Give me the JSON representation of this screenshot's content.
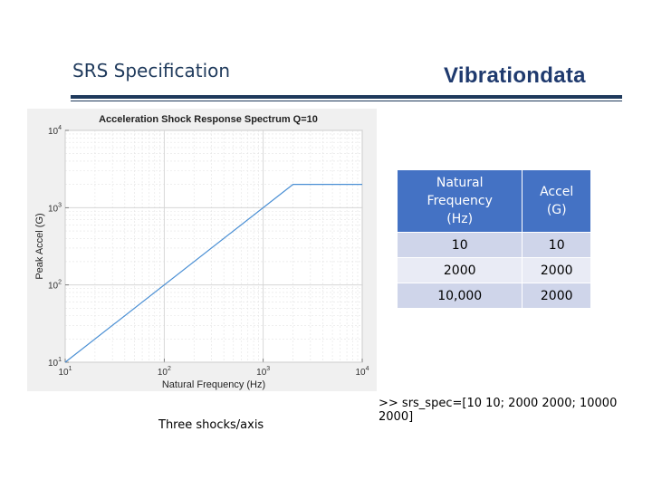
{
  "slide": {
    "title": "SRS Specification",
    "brand": "Vibrationdata"
  },
  "table": {
    "headers": [
      "Natural\nFrequency\n(Hz)",
      "Accel\n(G)"
    ],
    "rows": [
      [
        "10",
        "10"
      ],
      [
        "2000",
        "2000"
      ],
      [
        "10,000",
        "2000"
      ]
    ]
  },
  "command": ">> srs_spec=[10 10; 2000 2000; 10000 2000]",
  "caption": "Three shocks/axis",
  "chart_data": {
    "type": "line",
    "title": "Acceleration Shock Response Spectrum Q=10",
    "xlabel": "Natural Frequency (Hz)",
    "ylabel": "Peak Accel (G)",
    "x_scale": "log",
    "y_scale": "log",
    "xlim": [
      10,
      10000
    ],
    "ylim": [
      10,
      10000
    ],
    "x_ticks": [
      {
        "value": 10,
        "base": "10",
        "exp": "1"
      },
      {
        "value": 100,
        "base": "10",
        "exp": "2"
      },
      {
        "value": 1000,
        "base": "10",
        "exp": "3"
      },
      {
        "value": 10000,
        "base": "10",
        "exp": "4"
      }
    ],
    "y_ticks": [
      {
        "value": 10,
        "base": "10",
        "exp": "1"
      },
      {
        "value": 100,
        "base": "10",
        "exp": "2"
      },
      {
        "value": 1000,
        "base": "10",
        "exp": "3"
      },
      {
        "value": 10000,
        "base": "10",
        "exp": "4"
      }
    ],
    "grid": true,
    "series": [
      {
        "x": [
          10,
          2000,
          10000
        ],
        "y": [
          10,
          2000,
          2000
        ],
        "color": "#4a8fd4"
      }
    ]
  }
}
